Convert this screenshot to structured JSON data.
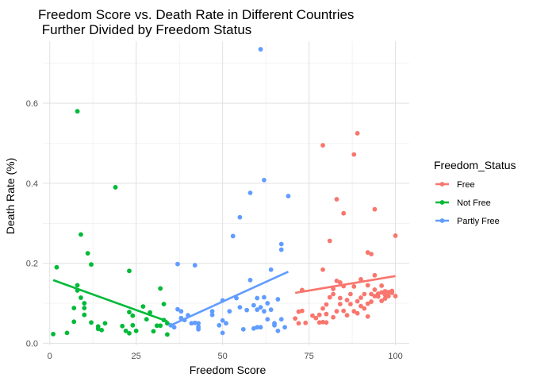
{
  "chart_data": {
    "type": "scatter",
    "title_lines": [
      "Freedom Score vs. Death Rate in Different Countries",
      " Further Divided by Freedom Status"
    ],
    "xlabel": "Freedom Score",
    "ylabel": "Death Rate (%)",
    "xlim": [
      -2,
      104
    ],
    "ylim": [
      -0.005,
      0.755
    ],
    "x_ticks": [
      0,
      25,
      50,
      75,
      100
    ],
    "y_ticks": [
      0.0,
      0.2,
      0.4,
      0.6
    ],
    "y_tick_labels": [
      "0.0",
      "0.2",
      "0.4",
      "0.6"
    ],
    "grid": true,
    "legend": {
      "title": "Freedom_Status",
      "placement": "right"
    },
    "series": [
      {
        "name": "Free",
        "color": "#F8766D",
        "trend": [
          [
            71,
            0.126
          ],
          [
            100,
            0.168
          ]
        ],
        "points": [
          [
            71,
            0.062
          ],
          [
            72,
            0.05
          ],
          [
            72,
            0.079
          ],
          [
            73,
            0.081
          ],
          [
            73,
            0.133
          ],
          [
            74,
            0.051
          ],
          [
            76,
            0.069
          ],
          [
            77,
            0.063
          ],
          [
            78,
            0.052
          ],
          [
            78,
            0.071
          ],
          [
            79,
            0.184
          ],
          [
            79,
            0.087
          ],
          [
            79,
            0.053
          ],
          [
            79,
            0.495
          ],
          [
            80,
            0.097
          ],
          [
            80,
            0.073
          ],
          [
            80,
            0.052
          ],
          [
            81,
            0.115
          ],
          [
            81,
            0.256
          ],
          [
            82,
            0.065
          ],
          [
            82,
            0.123
          ],
          [
            82,
            0.136
          ],
          [
            83,
            0.08
          ],
          [
            83,
            0.36
          ],
          [
            83,
            0.156
          ],
          [
            84,
            0.152
          ],
          [
            84,
            0.113
          ],
          [
            84,
            0.098
          ],
          [
            85,
            0.325
          ],
          [
            85,
            0.081
          ],
          [
            85,
            0.143
          ],
          [
            86,
            0.07
          ],
          [
            86,
            0.108
          ],
          [
            87,
            0.123
          ],
          [
            87,
            0.098
          ],
          [
            88,
            0.472
          ],
          [
            88,
            0.142
          ],
          [
            88,
            0.08
          ],
          [
            89,
            0.525
          ],
          [
            89,
            0.105
          ],
          [
            89,
            0.075
          ],
          [
            90,
            0.16
          ],
          [
            90,
            0.114
          ],
          [
            90,
            0.093
          ],
          [
            91,
            0.123
          ],
          [
            91,
            0.087
          ],
          [
            92,
            0.227
          ],
          [
            92,
            0.145
          ],
          [
            92,
            0.099
          ],
          [
            92,
            0.067
          ],
          [
            93,
            0.223
          ],
          [
            93,
            0.123
          ],
          [
            93,
            0.104
          ],
          [
            94,
            0.335
          ],
          [
            94,
            0.17
          ],
          [
            94,
            0.134
          ],
          [
            94,
            0.118
          ],
          [
            95,
            0.124
          ],
          [
            95,
            0.117
          ],
          [
            96,
            0.127
          ],
          [
            96,
            0.144
          ],
          [
            96,
            0.106
          ],
          [
            97,
            0.13
          ],
          [
            97,
            0.121
          ],
          [
            97,
            0.112
          ],
          [
            98,
            0.128
          ],
          [
            98,
            0.118
          ],
          [
            99,
            0.131
          ],
          [
            99,
            0.126
          ],
          [
            100,
            0.269
          ],
          [
            100,
            0.118
          ]
        ]
      },
      {
        "name": "Not Free",
        "color": "#00BA38",
        "trend": [
          [
            1,
            0.158
          ],
          [
            34,
            0.055
          ]
        ],
        "points": [
          [
            1,
            0.023
          ],
          [
            2,
            0.19
          ],
          [
            5,
            0.026
          ],
          [
            7,
            0.054
          ],
          [
            7,
            0.088
          ],
          [
            8,
            0.58
          ],
          [
            8,
            0.145
          ],
          [
            8,
            0.132
          ],
          [
            9,
            0.272
          ],
          [
            9,
            0.114
          ],
          [
            10,
            0.1
          ],
          [
            10,
            0.088
          ],
          [
            10,
            0.071
          ],
          [
            11,
            0.225
          ],
          [
            12,
            0.197
          ],
          [
            12,
            0.052
          ],
          [
            14,
            0.036
          ],
          [
            14,
            0.042
          ],
          [
            15,
            0.033
          ],
          [
            16,
            0.05
          ],
          [
            19,
            0.39
          ],
          [
            21,
            0.043
          ],
          [
            22,
            0.031
          ],
          [
            23,
            0.181
          ],
          [
            23,
            0.078
          ],
          [
            23,
            0.025
          ],
          [
            24,
            0.069
          ],
          [
            24,
            0.045
          ],
          [
            25,
            0.031
          ],
          [
            27,
            0.092
          ],
          [
            28,
            0.06
          ],
          [
            29,
            0.077
          ],
          [
            30,
            0.03
          ],
          [
            31,
            0.044
          ],
          [
            32,
            0.137
          ],
          [
            32,
            0.044
          ],
          [
            33,
            0.058
          ],
          [
            33,
            0.098
          ],
          [
            34,
            0.022
          ],
          [
            34,
            0.05
          ]
        ]
      },
      {
        "name": "Partly Free",
        "color": "#619CFF",
        "trend": [
          [
            35,
            0.045
          ],
          [
            69,
            0.179
          ]
        ],
        "points": [
          [
            35,
            0.045
          ],
          [
            36,
            0.04
          ],
          [
            37,
            0.198
          ],
          [
            37,
            0.085
          ],
          [
            38,
            0.063
          ],
          [
            38,
            0.08
          ],
          [
            39,
            0.058
          ],
          [
            40,
            0.07
          ],
          [
            41,
            0.05
          ],
          [
            42,
            0.195
          ],
          [
            42,
            0.051
          ],
          [
            43,
            0.035
          ],
          [
            43,
            0.05
          ],
          [
            43,
            0.041
          ],
          [
            47,
            0.071
          ],
          [
            47,
            0.08
          ],
          [
            49,
            0.045
          ],
          [
            50,
            0.107
          ],
          [
            50,
            0.026
          ],
          [
            50,
            0.057
          ],
          [
            51,
            0.05
          ],
          [
            52,
            0.08
          ],
          [
            53,
            0.268
          ],
          [
            54,
            0.113
          ],
          [
            55,
            0.315
          ],
          [
            55,
            0.09
          ],
          [
            56,
            0.035
          ],
          [
            57,
            0.083
          ],
          [
            58,
            0.376
          ],
          [
            58,
            0.158
          ],
          [
            59,
            0.037
          ],
          [
            59,
            0.095
          ],
          [
            60,
            0.04
          ],
          [
            60,
            0.113
          ],
          [
            60,
            0.084
          ],
          [
            61,
            0.04
          ],
          [
            61,
            0.09
          ],
          [
            61,
            0.735
          ],
          [
            62,
            0.408
          ],
          [
            62,
            0.08
          ],
          [
            62,
            0.115
          ],
          [
            63,
            0.06
          ],
          [
            63,
            0.1
          ],
          [
            64,
            0.184
          ],
          [
            64,
            0.084
          ],
          [
            65,
            0.05
          ],
          [
            65,
            0.045
          ],
          [
            66,
            0.031
          ],
          [
            66,
            0.11
          ],
          [
            67,
            0.248
          ],
          [
            67,
            0.234
          ],
          [
            67,
            0.06
          ],
          [
            68,
            0.04
          ],
          [
            69,
            0.368
          ]
        ]
      }
    ]
  }
}
